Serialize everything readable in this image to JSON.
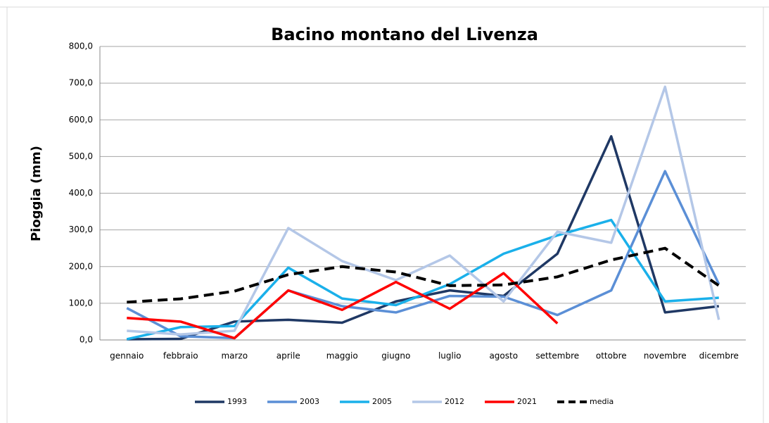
{
  "chart_data": {
    "type": "line",
    "title": "Bacino montano del Livenza",
    "y_label": "Pioggia (mm)",
    "categories": [
      "gennaio",
      "febbraio",
      "marzo",
      "aprile",
      "maggio",
      "giugno",
      "luglio",
      "agosto",
      "settembre",
      "ottobre",
      "novembre",
      "dicembre"
    ],
    "series": [
      {
        "name": "1993",
        "color": "#1f3864",
        "values": [
          2,
          3,
          50,
          55,
          47,
          105,
          135,
          120,
          235,
          555,
          75,
          92
        ]
      },
      {
        "name": "2003",
        "color": "#5b8fd6",
        "values": [
          87,
          10,
          5,
          135,
          92,
          75,
          120,
          118,
          68,
          135,
          460,
          152
        ]
      },
      {
        "name": "2005",
        "color": "#1ab0ea",
        "values": [
          2,
          35,
          38,
          197,
          113,
          95,
          152,
          235,
          285,
          327,
          105,
          115
        ]
      },
      {
        "name": "2012",
        "color": "#b4c7e7",
        "values": [
          25,
          15,
          25,
          305,
          215,
          163,
          230,
          105,
          295,
          265,
          690,
          55
        ]
      },
      {
        "name": "2021",
        "color": "#ff0000",
        "values": [
          60,
          50,
          5,
          135,
          82,
          158,
          85,
          182,
          45,
          null,
          null,
          null
        ]
      },
      {
        "name": "media",
        "color": "#000000",
        "dashed": true,
        "values": [
          103,
          112,
          133,
          178,
          200,
          185,
          148,
          150,
          172,
          218,
          250,
          148
        ]
      }
    ],
    "ylim": [
      0,
      800
    ],
    "yticks": [
      {
        "value": 0,
        "label": "0,0"
      },
      {
        "value": 100,
        "label": "100,0"
      },
      {
        "value": 200,
        "label": "200,0"
      },
      {
        "value": 300,
        "label": "300,0"
      },
      {
        "value": 400,
        "label": "400,0"
      },
      {
        "value": 500,
        "label": "500,0"
      },
      {
        "value": 600,
        "label": "600,0"
      },
      {
        "value": 700,
        "label": "700,0"
      },
      {
        "value": 800,
        "label": "800,0"
      }
    ],
    "grid": true,
    "legend": "bottom"
  }
}
